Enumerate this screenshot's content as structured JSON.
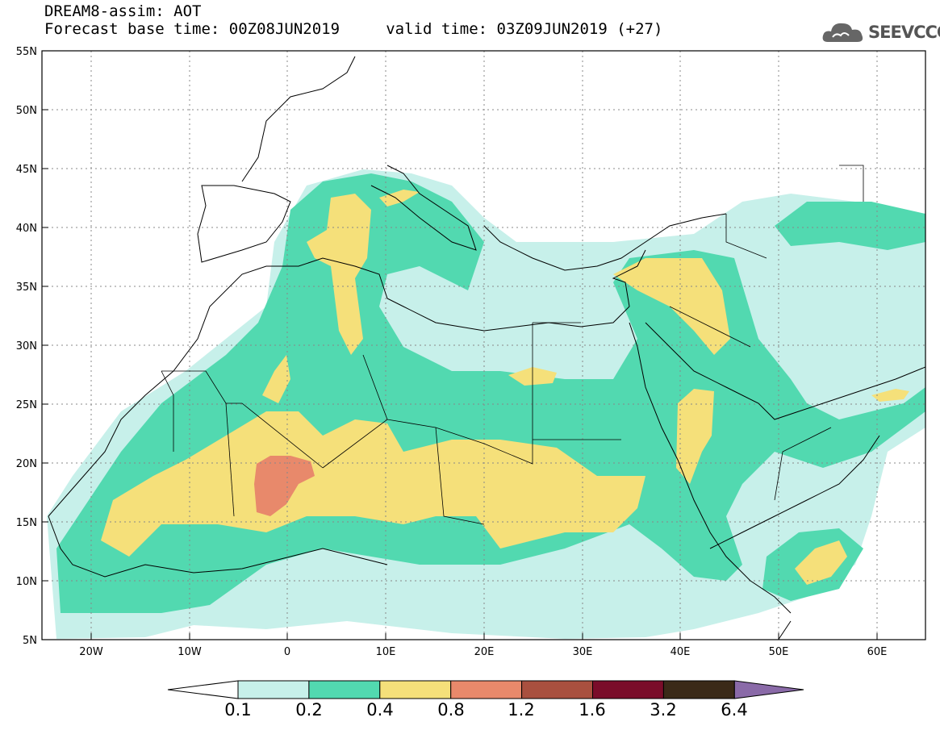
{
  "header": {
    "line1": "DREAM8-assim: AOT",
    "line2": "Forecast base time: 00Z08JUN2019     valid time: 03Z09JUN2019 (+27)"
  },
  "logo": {
    "text": "SEEVCCC",
    "icon": "cloud-icon"
  },
  "map": {
    "lat_range": [
      5,
      55
    ],
    "lon_range": [
      -25,
      65
    ],
    "lat_labels": [
      "55N",
      "50N",
      "45N",
      "40N",
      "35N",
      "30N",
      "25N",
      "20N",
      "15N",
      "10N",
      "5N"
    ],
    "lon_labels": [
      "20W",
      "10W",
      "0",
      "10E",
      "20E",
      "30E",
      "40E",
      "50E",
      "60E"
    ],
    "grid": "dotted"
  },
  "colorbar": {
    "labels": [
      "0.1",
      "0.2",
      "0.4",
      "0.8",
      "1.2",
      "1.6",
      "3.2",
      "6.4"
    ],
    "colors": [
      "#ffffff",
      "#c7f0ea",
      "#52d9b0",
      "#f5e07a",
      "#e8896b",
      "#a9503f",
      "#7a0d2a",
      "#3b2a18",
      "#8a6aa8"
    ]
  }
}
